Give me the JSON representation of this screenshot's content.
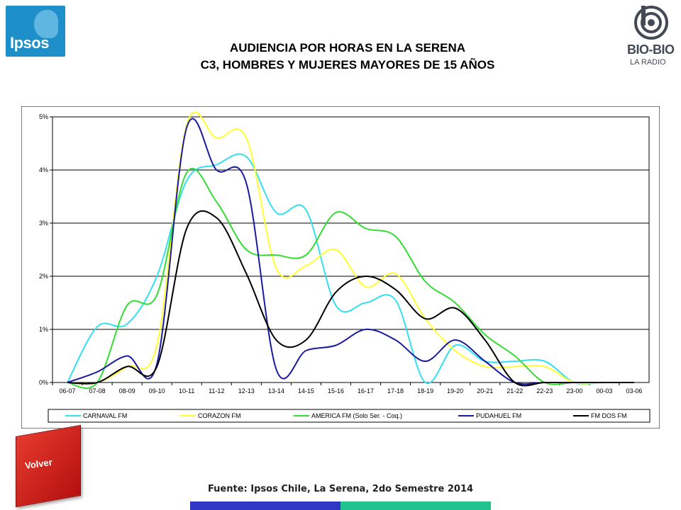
{
  "logos": {
    "ipsos": "Ipsos",
    "biobio": "BIO-BIO",
    "biobio_sub": "LA RADIO"
  },
  "chart_data": {
    "type": "line",
    "title": "AUDIENCIA POR HORAS EN LA SERENA",
    "subtitle": "C3, HOMBRES Y MUJERES MAYORES DE 15 AÑOS",
    "categories": [
      "06-07",
      "07-08",
      "08-09",
      "09-10",
      "10-11",
      "11-12",
      "12-13",
      "13-14",
      "14-15",
      "15-16",
      "16-17",
      "17-18",
      "18-19",
      "19-20",
      "20-21",
      "21-22",
      "22-23",
      "23-00",
      "00-03",
      "03-06"
    ],
    "yticks": [
      "0%",
      "1%",
      "2%",
      "3%",
      "4%",
      "5%"
    ],
    "ylim": [
      0,
      5
    ],
    "grid": true,
    "legend_position": "bottom",
    "series": [
      {
        "name": "CARNAVAL FM",
        "color": "#33e0f0",
        "values": [
          0.0,
          1.05,
          1.1,
          2.0,
          3.8,
          4.1,
          4.25,
          3.2,
          3.25,
          1.45,
          1.5,
          1.55,
          0.0,
          0.7,
          0.4,
          0.4,
          0.4,
          0.0,
          0.0,
          0.0
        ]
      },
      {
        "name": "CORAZON FM",
        "color": "#ffff33",
        "values": [
          0.0,
          0.0,
          0.3,
          0.7,
          4.85,
          4.6,
          4.6,
          2.15,
          2.2,
          2.5,
          1.8,
          2.05,
          1.2,
          0.6,
          0.3,
          0.3,
          0.3,
          0.0,
          0.0,
          0.0
        ]
      },
      {
        "name": "AMERICA FM (Solo Ser. - Coq.)",
        "color": "#33dd33",
        "values": [
          0.0,
          0.0,
          1.45,
          1.65,
          3.95,
          3.4,
          2.5,
          2.4,
          2.4,
          3.2,
          2.9,
          2.75,
          1.9,
          1.5,
          0.9,
          0.5,
          0.0,
          0.0,
          0.0,
          0.0
        ]
      },
      {
        "name": "PUDAHUEL FM",
        "color": "#1a1aa0",
        "values": [
          0.0,
          0.2,
          0.5,
          0.35,
          4.8,
          4.0,
          3.75,
          0.25,
          0.6,
          0.7,
          1.0,
          0.8,
          0.4,
          0.8,
          0.4,
          0.0,
          0.0,
          0.0,
          0.0,
          0.0
        ]
      },
      {
        "name": "FM DOS FM",
        "color": "#000000",
        "values": [
          0.0,
          0.0,
          0.3,
          0.3,
          2.9,
          3.1,
          2.05,
          0.8,
          0.8,
          1.7,
          2.0,
          1.75,
          1.2,
          1.4,
          0.8,
          0.0,
          0.0,
          0.0,
          0.0,
          0.0
        ]
      }
    ]
  },
  "volver_label": "Volver",
  "source": "Fuente: Ipsos Chile, La Serena, 2do Semestre 2014"
}
